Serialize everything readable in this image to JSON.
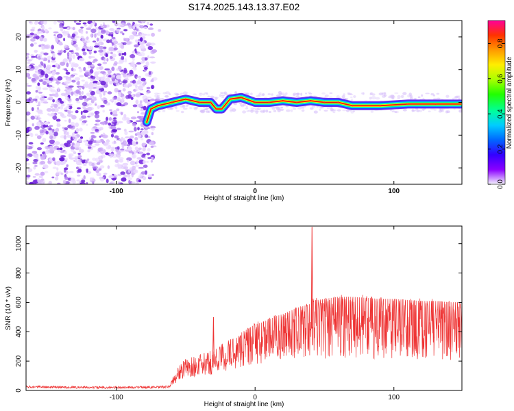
{
  "title": "S174.2025.143.13.37.E02",
  "colors": {
    "snr_line": "#ee3333",
    "noise_purple": "#7a2fe0",
    "ridge_core": "#ee1111",
    "background": "#ffffff"
  },
  "chart_data": [
    {
      "type": "heatmap",
      "xlabel": "Height of straight line (km)",
      "ylabel": "Frequency (Hz)",
      "xlim": [
        -165,
        149
      ],
      "ylim": [
        -25,
        25
      ],
      "xticks": [
        -100,
        0,
        100
      ],
      "yticks": [
        -20,
        -10,
        0,
        10,
        20
      ],
      "colorbar": {
        "label": "Normalized spectral amplitude",
        "range": [
          0.0,
          0.93
        ],
        "ticks": [
          "0.0",
          "0.2",
          "0.4",
          "0.6",
          "0.8"
        ],
        "colormap": "rainbow",
        "stops": [
          "#f5f5ff",
          "#8a00ff",
          "#3300ff",
          "#0066ff",
          "#00ccff",
          "#00ff99",
          "#22ff00",
          "#aaff00",
          "#ffee00",
          "#ff9900",
          "#ff3300",
          "#ff0099"
        ]
      },
      "noise_region": {
        "x_range": [
          -165,
          -73
        ],
        "freq_range": [
          -25,
          25
        ]
      },
      "ridge": [
        {
          "x": -78,
          "f": -6
        },
        {
          "x": -75,
          "f": -2
        },
        {
          "x": -70,
          "f": -1
        },
        {
          "x": -60,
          "f": 0
        },
        {
          "x": -50,
          "f": 1
        },
        {
          "x": -40,
          "f": 0
        },
        {
          "x": -32,
          "f": 0
        },
        {
          "x": -28,
          "f": -2
        },
        {
          "x": -24,
          "f": -2
        },
        {
          "x": -18,
          "f": 1
        },
        {
          "x": -10,
          "f": 1.5
        },
        {
          "x": 0,
          "f": 0
        },
        {
          "x": 10,
          "f": 0
        },
        {
          "x": 20,
          "f": 0.5
        },
        {
          "x": 30,
          "f": 0
        },
        {
          "x": 40,
          "f": 0.5
        },
        {
          "x": 50,
          "f": 0
        },
        {
          "x": 60,
          "f": 0
        },
        {
          "x": 70,
          "f": -1
        },
        {
          "x": 90,
          "f": -1
        },
        {
          "x": 110,
          "f": -0.5
        },
        {
          "x": 130,
          "f": -0.5
        },
        {
          "x": 148,
          "f": -0.5
        }
      ]
    },
    {
      "type": "line",
      "xlabel": "Height of straight line (km)",
      "ylabel": "SNR (10 * v/v)",
      "xlim": [
        -165,
        149
      ],
      "ylim": [
        0,
        1120
      ],
      "xticks": [
        -100,
        0,
        100
      ],
      "yticks": [
        0,
        200,
        400,
        600,
        800,
        1000
      ],
      "series": [
        {
          "x": [
            -165,
            -140,
            -120,
            -100,
            -80,
            -70,
            -62,
            -58,
            -55,
            -50,
            -45,
            -40,
            -35,
            -30,
            -25,
            -20,
            -15,
            -10,
            -5,
            0,
            5,
            10,
            15,
            20,
            25,
            30,
            35,
            40,
            45,
            50,
            55,
            60,
            70,
            80,
            90,
            100,
            110,
            120,
            130,
            140,
            149
          ],
          "y": [
            25,
            22,
            20,
            20,
            22,
            22,
            25,
            80,
            120,
            150,
            160,
            170,
            180,
            195,
            220,
            240,
            260,
            280,
            300,
            320,
            330,
            345,
            360,
            370,
            385,
            400,
            410,
            420,
            425,
            430,
            435,
            440,
            440,
            435,
            430,
            430,
            425,
            420,
            420,
            415,
            415
          ]
        }
      ],
      "spikes": [
        {
          "x": -30,
          "y": 500
        },
        {
          "x": 41,
          "y": 1115
        }
      ]
    }
  ]
}
